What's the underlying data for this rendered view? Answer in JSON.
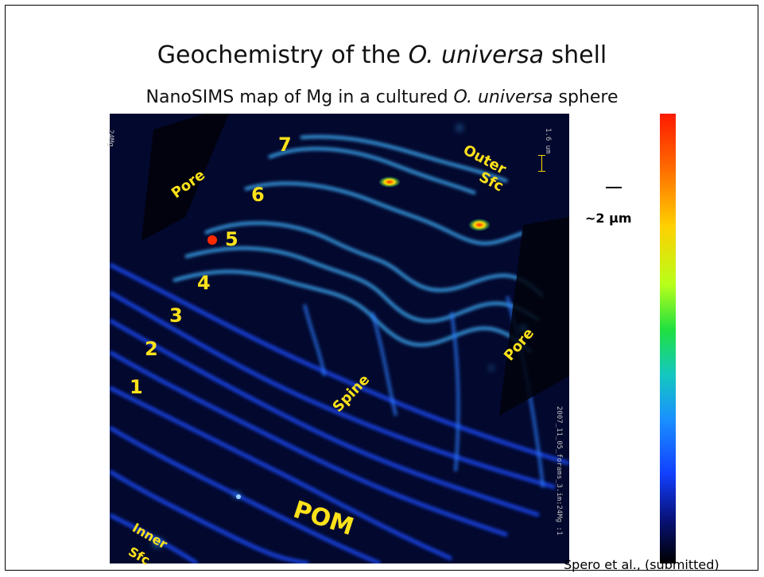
{
  "title_prefix": "Geochemistry of the ",
  "title_italic": "O. universa",
  "title_suffix": " shell",
  "subtitle_prefix": "NanoSIMS map of Mg in a cultured ",
  "subtitle_italic": "O. universa",
  "subtitle_suffix": " sphere",
  "map": {
    "corner_label": "24Mg",
    "scale_label": "1.6 um",
    "file_label": "2007_11_05_forams_3.im:24Mg :1",
    "layer_numbers": [
      "1",
      "2",
      "3",
      "4",
      "5",
      "6",
      "7"
    ],
    "labels": {
      "pore_left": "Pore",
      "pore_right": "Pore",
      "outer_line1": "Outer",
      "outer_line2": "Sfc",
      "spine": "Spine",
      "pom": "POM",
      "inner_line1": "Inner",
      "inner_line2": "Sfc"
    }
  },
  "scale_text": "~2 µm",
  "citation": "Spero et al., (submitted)",
  "colors": {
    "label_yellow": "#ffe21a",
    "map_background": "#020418",
    "band_blue": "#1f4dff",
    "band_cyan": "#3fb4ff",
    "hotspot": "#ff3b00"
  }
}
